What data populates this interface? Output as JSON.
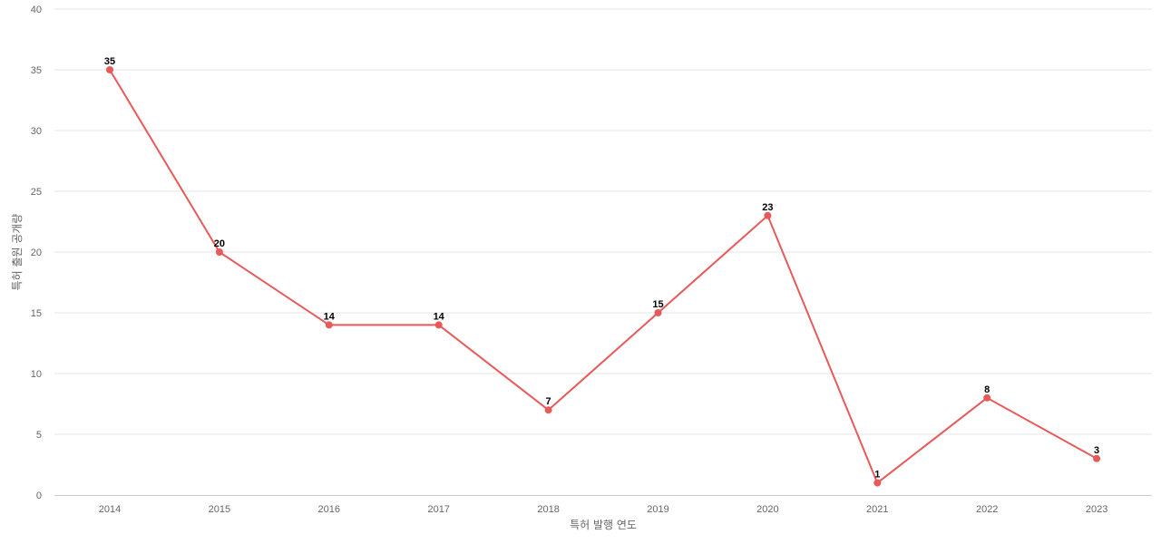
{
  "chart_data": {
    "type": "line",
    "title": "",
    "xlabel": "특허 발행 연도",
    "ylabel": "특허 출원 공개량",
    "categories": [
      "2014",
      "2015",
      "2016",
      "2017",
      "2018",
      "2019",
      "2020",
      "2021",
      "2022",
      "2023"
    ],
    "series": [
      {
        "values": [
          35,
          20,
          14,
          14,
          7,
          15,
          23,
          1,
          8,
          3
        ]
      }
    ],
    "ylim": [
      0,
      40
    ],
    "yticks": [
      0,
      5,
      10,
      15,
      20,
      25,
      30,
      35,
      40
    ],
    "grid": true,
    "legend": "none",
    "colors": {
      "line": "#e85a5a",
      "grid": "#e6e6e6",
      "axis_text": "#666666",
      "label_text": "#000000"
    }
  }
}
